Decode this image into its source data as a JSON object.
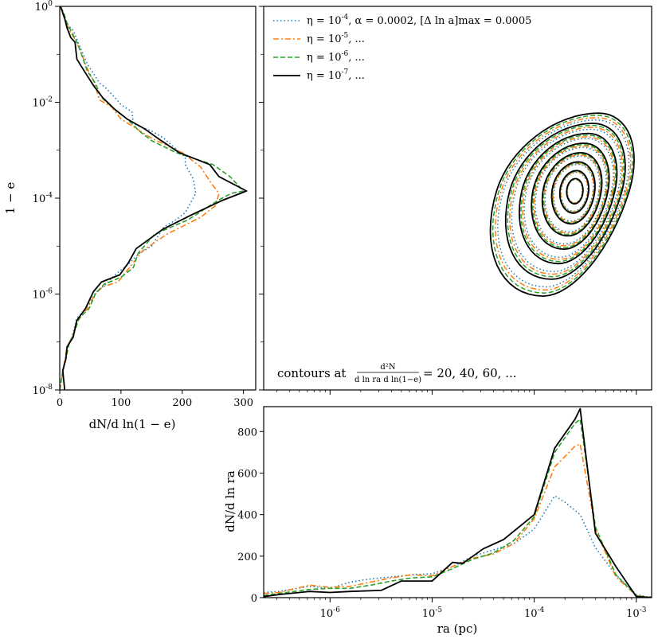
{
  "chart_data": [
    {
      "id": "left-marginal",
      "type": "line",
      "xlabel": "dN/d ln(1 − e)",
      "ylabel": "1 − e",
      "xlim": [
        0,
        320
      ],
      "ylim_log10": [
        -8,
        0
      ],
      "x_ticks": [
        {
          "value": 0,
          "label": "0"
        },
        {
          "value": 100,
          "label": "100"
        },
        {
          "value": 200,
          "label": "200"
        },
        {
          "value": 300,
          "label": "300"
        }
      ],
      "y_ticks": [
        {
          "exp": 0,
          "label": "10^0"
        },
        {
          "exp": -2,
          "label": "10^-2"
        },
        {
          "exp": -4,
          "label": "10^-4"
        },
        {
          "exp": -6,
          "label": "10^-6"
        },
        {
          "exp": -8,
          "label": "10^-8"
        }
      ],
      "series": [
        {
          "name": "eta=1e-4",
          "style": "dotted",
          "color": "#1f77b4",
          "x": [
            0,
            4,
            8,
            10,
            12,
            20,
            28,
            40,
            45,
            55,
            60,
            75,
            90,
            110,
            130,
            150,
            170,
            190,
            205,
            222,
            218,
            205,
            205,
            170,
            150,
            120,
            118,
            100,
            90,
            75,
            65,
            55,
            45,
            35,
            30,
            22,
            18,
            14,
            10,
            6,
            5,
            3,
            1
          ],
          "log10y": [
            -8,
            -7.7,
            -7.4,
            -7.3,
            -7.1,
            -6.9,
            -6.5,
            -6.35,
            -6.25,
            -6.05,
            -5.95,
            -5.8,
            -5.6,
            -5.4,
            -5.15,
            -5.0,
            -4.6,
            -4.45,
            -4.3,
            -3.9,
            -3.6,
            -3.3,
            -3.15,
            -2.75,
            -2.6,
            -2.45,
            -2.2,
            -2.05,
            -1.9,
            -1.7,
            -1.6,
            -1.4,
            -1.2,
            -0.9,
            -0.75,
            -0.5,
            -0.45,
            -0.4,
            -0.3,
            -0.2,
            -0.12,
            -0.05,
            0
          ]
        },
        {
          "name": "eta=1e-5",
          "style": "dashdot",
          "color": "#ff7f0e",
          "x": [
            0,
            4,
            8,
            12,
            20,
            30,
            45,
            58,
            70,
            95,
            120,
            135,
            175,
            230,
            255,
            260,
            248,
            230,
            200,
            150,
            125,
            100,
            85,
            65,
            55,
            45,
            28,
            18,
            10,
            5,
            1
          ],
          "log10y": [
            -8,
            -7.7,
            -7.4,
            -7.1,
            -6.9,
            -6.55,
            -6.3,
            -6.0,
            -5.85,
            -5.75,
            -5.35,
            -5.1,
            -4.75,
            -4.4,
            -4.15,
            -3.9,
            -3.7,
            -3.35,
            -3.05,
            -2.75,
            -2.55,
            -2.35,
            -2.1,
            -1.95,
            -1.55,
            -1.3,
            -0.75,
            -0.55,
            -0.35,
            -0.15,
            0
          ]
        },
        {
          "name": "eta=1e-6",
          "style": "dashed",
          "color": "#2ca02c",
          "x": [
            0,
            5,
            10,
            15,
            22,
            32,
            48,
            58,
            72,
            100,
            120,
            128,
            155,
            210,
            258,
            280,
            300,
            278,
            250,
            190,
            150,
            130,
            110,
            90,
            68,
            58,
            45,
            30,
            20,
            12,
            6,
            1
          ],
          "log10y": [
            -8,
            -7.6,
            -7.35,
            -7.05,
            -6.85,
            -6.5,
            -6.3,
            -6.0,
            -5.8,
            -5.65,
            -5.45,
            -5.15,
            -4.75,
            -4.45,
            -4.05,
            -3.9,
            -3.85,
            -3.55,
            -3.3,
            -3.05,
            -2.8,
            -2.6,
            -2.35,
            -2.15,
            -1.9,
            -1.6,
            -1.35,
            -0.8,
            -0.55,
            -0.35,
            -0.12,
            0
          ]
        },
        {
          "name": "eta=1e-7",
          "style": "solid",
          "color": "#000000",
          "x": [
            8,
            5,
            10,
            12,
            22,
            28,
            42,
            55,
            68,
            98,
            112,
            125,
            168,
            215,
            265,
            305,
            260,
            245,
            195,
            160,
            138,
            110,
            90,
            70,
            55,
            40,
            28,
            25,
            18,
            12,
            8,
            4,
            1
          ],
          "log10y": [
            -8,
            -7.6,
            -7.35,
            -7.1,
            -6.9,
            -6.55,
            -6.3,
            -5.95,
            -5.75,
            -5.6,
            -5.35,
            -5.05,
            -4.65,
            -4.35,
            -4.05,
            -3.85,
            -3.55,
            -3.3,
            -3.05,
            -2.75,
            -2.55,
            -2.35,
            -2.15,
            -1.9,
            -1.65,
            -1.35,
            -1.1,
            -0.75,
            -0.65,
            -0.45,
            -0.25,
            -0.1,
            0
          ]
        }
      ]
    },
    {
      "id": "joint-contour",
      "type": "contour",
      "legend_position": "top-left",
      "legend": [
        {
          "text": "η = 10^-4, α = 0.0002, [Δ ln a]max = 0.0005",
          "style": "dotted",
          "color": "#1f77b4"
        },
        {
          "text": "η = 10^-5, ...",
          "style": "dashdot",
          "color": "#ff7f0e"
        },
        {
          "text": "η = 10^-6, ...",
          "style": "dashed",
          "color": "#2ca02c"
        },
        {
          "text": "η = 10^-7, ...",
          "style": "solid",
          "color": "#000000"
        }
      ],
      "annotation": {
        "prefix": "contours at",
        "numerator": "d²N",
        "denominator": "d ln ra d ln(1−e)",
        "suffix": "= 20, 40, 60, ..."
      },
      "contour_center": {
        "log10_ra": -3.6,
        "log10_1me": -3.85
      },
      "contour_levels": [
        20,
        40,
        60,
        80,
        100,
        120,
        140,
        160
      ]
    },
    {
      "id": "bottom-marginal",
      "type": "line",
      "xlabel": "ra (pc)",
      "ylabel": "dN/d ln ra",
      "xlim_log10": [
        -6.65,
        -2.85
      ],
      "ylim": [
        0,
        920
      ],
      "x_ticks": [
        {
          "exp": -6,
          "label": "10^-6"
        },
        {
          "exp": -5,
          "label": "10^-5"
        },
        {
          "exp": -4,
          "label": "10^-4"
        },
        {
          "exp": -3,
          "label": "10^-3"
        }
      ],
      "y_ticks": [
        {
          "value": 0,
          "label": "0"
        },
        {
          "value": 200,
          "label": "200"
        },
        {
          "value": 400,
          "label": "400"
        },
        {
          "value": 600,
          "label": "600"
        },
        {
          "value": 800,
          "label": "800"
        }
      ],
      "series": [
        {
          "name": "eta=1e-4",
          "style": "dotted",
          "color": "#1f77b4",
          "log10x": [
            -6.65,
            -6.5,
            -6.2,
            -6.0,
            -5.8,
            -5.6,
            -5.4,
            -5.2,
            -5.0,
            -4.8,
            -4.6,
            -4.4,
            -4.2,
            -4.0,
            -3.8,
            -3.7,
            -3.55,
            -3.4,
            -3.2,
            -3.0,
            -2.9,
            -2.85
          ],
          "y": [
            25,
            30,
            55,
            45,
            75,
            90,
            100,
            110,
            115,
            150,
            200,
            230,
            260,
            330,
            490,
            460,
            400,
            240,
            110,
            15,
            5,
            3
          ]
        },
        {
          "name": "eta=1e-5",
          "style": "dashdot",
          "color": "#ff7f0e",
          "log10x": [
            -6.65,
            -6.5,
            -6.2,
            -6.0,
            -5.8,
            -5.6,
            -5.4,
            -5.2,
            -5.0,
            -4.8,
            -4.6,
            -4.4,
            -4.2,
            -4.0,
            -3.8,
            -3.6,
            -3.55,
            -3.4,
            -3.2,
            -3.0,
            -2.9,
            -2.85
          ],
          "y": [
            20,
            25,
            60,
            50,
            55,
            75,
            95,
            110,
            105,
            150,
            190,
            210,
            260,
            380,
            630,
            730,
            740,
            330,
            100,
            10,
            4,
            2
          ]
        },
        {
          "name": "eta=1e-6",
          "style": "dashed",
          "color": "#2ca02c",
          "log10x": [
            -6.65,
            -6.5,
            -6.2,
            -6.0,
            -5.8,
            -5.6,
            -5.4,
            -5.2,
            -5.0,
            -4.8,
            -4.6,
            -4.4,
            -4.2,
            -4.0,
            -3.8,
            -3.6,
            -3.55,
            -3.4,
            -3.2,
            -3.0,
            -2.9,
            -2.85
          ],
          "y": [
            10,
            20,
            40,
            45,
            45,
            60,
            80,
            95,
            100,
            140,
            185,
            215,
            275,
            390,
            700,
            840,
            860,
            340,
            110,
            10,
            3,
            1
          ]
        },
        {
          "name": "eta=1e-7",
          "style": "solid",
          "color": "#000000",
          "log10x": [
            -6.65,
            -6.5,
            -6.2,
            -6.0,
            -5.8,
            -5.5,
            -5.3,
            -5.0,
            -4.8,
            -4.7,
            -4.5,
            -4.3,
            -4.0,
            -3.8,
            -3.6,
            -3.55,
            -3.4,
            -3.2,
            -3.0,
            -2.9,
            -2.85
          ],
          "y": [
            5,
            15,
            30,
            25,
            30,
            35,
            80,
            80,
            170,
            165,
            235,
            280,
            400,
            720,
            860,
            910,
            310,
            150,
            5,
            2,
            1
          ]
        }
      ]
    }
  ]
}
